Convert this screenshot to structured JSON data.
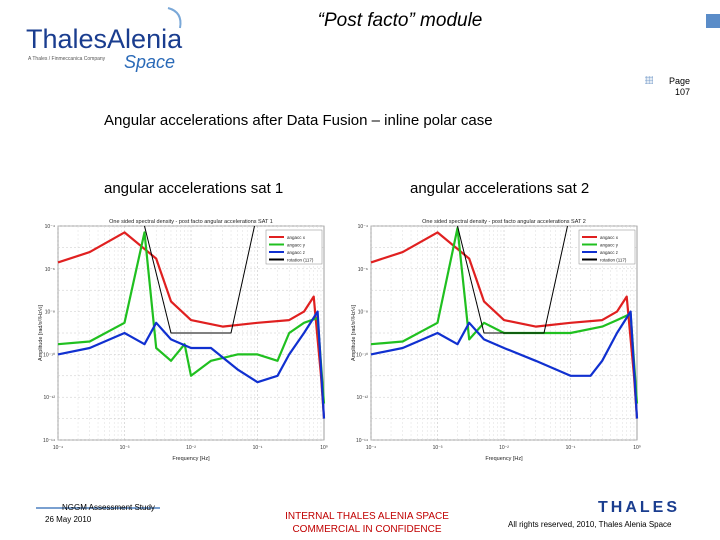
{
  "header": {
    "logo_main": "ThalesAlenia",
    "logo_tagline": "A Thales / Finmeccanica Company",
    "logo_space": "Space",
    "title": "“Post facto” module"
  },
  "page": {
    "label": "Page",
    "number": "107"
  },
  "slide": {
    "subtitle": "Angular accelerations after Data Fusion – inline polar case",
    "caption_sat1": "angular accelerations sat 1",
    "caption_sat2": "angular accelerations sat 2"
  },
  "chart_data": [
    {
      "type": "line",
      "title": "One sided spectral density - post facto angular accelerations SAT 1",
      "xlabel": "Frequency [Hz]",
      "ylabel": "Amplitude [rad/s²/Hz½]",
      "xscale": "log",
      "yscale": "log",
      "xlim": [
        0.0001,
        1
      ],
      "ylim": [
        1e-14,
        0.0001
      ],
      "x_tick_labels": [
        "10⁻⁴",
        "10⁻³",
        "10⁻²",
        "10⁻¹",
        "10⁰"
      ],
      "y_tick_labels": [
        "10⁻⁴",
        "10⁻⁶",
        "10⁻⁸",
        "10⁻¹⁰",
        "10⁻¹²",
        "10⁻¹⁴"
      ],
      "legend": [
        "angacc x",
        "angacc y",
        "angacc z",
        "rotation (117)"
      ],
      "legend_position": "top-right",
      "grid": true,
      "series": [
        {
          "name": "angacc x",
          "color": "#e02020",
          "x": [
            0.0001,
            0.0003,
            0.001,
            0.003,
            0.005,
            0.01,
            0.03,
            0.1,
            0.3,
            0.5,
            0.7,
            0.9,
            1
          ],
          "y": [
            2e-06,
            6e-06,
            5e-05,
            3e-06,
            3e-08,
            4e-09,
            2e-09,
            3e-09,
            4e-09,
            1e-08,
            5e-08,
            1e-11,
            1e-13
          ]
        },
        {
          "name": "angacc y",
          "color": "#20c020",
          "x": [
            0.0001,
            0.0003,
            0.001,
            0.002,
            0.003,
            0.005,
            0.008,
            0.01,
            0.02,
            0.05,
            0.1,
            0.2,
            0.3,
            0.5,
            0.8,
            1
          ],
          "y": [
            3e-10,
            4e-10,
            3e-09,
            5e-05,
            2e-10,
            5e-11,
            3e-10,
            1e-11,
            5e-11,
            1e-10,
            1e-10,
            5e-11,
            1e-09,
            3e-09,
            5e-09,
            5e-13
          ]
        },
        {
          "name": "angacc z",
          "color": "#1030d0",
          "x": [
            0.0001,
            0.0003,
            0.001,
            0.002,
            0.003,
            0.005,
            0.01,
            0.02,
            0.05,
            0.1,
            0.2,
            0.3,
            0.5,
            0.8,
            1
          ],
          "y": [
            1e-10,
            2e-10,
            1e-09,
            3e-10,
            3e-09,
            5e-10,
            2e-10,
            2e-10,
            2e-11,
            5e-12,
            1e-11,
            1e-10,
            1e-09,
            1e-08,
            1e-13
          ]
        },
        {
          "name": "rotation (117)",
          "color": "#000000",
          "x": [
            0.002,
            0.005,
            0.04,
            0.09
          ],
          "y": [
            0.0001,
            1e-09,
            1e-09,
            0.0001
          ]
        }
      ]
    },
    {
      "type": "line",
      "title": "One sided spectral density - post facto angular accelerations SAT 2",
      "xlabel": "Frequency [Hz]",
      "ylabel": "Amplitude [rad/s²/Hz½]",
      "xscale": "log",
      "yscale": "log",
      "xlim": [
        0.0001,
        1
      ],
      "ylim": [
        1e-14,
        0.0001
      ],
      "x_tick_labels": [
        "10⁻⁴",
        "10⁻³",
        "10⁻²",
        "10⁻¹",
        "10⁰"
      ],
      "y_tick_labels": [
        "10⁻⁴",
        "10⁻⁶",
        "10⁻⁸",
        "10⁻¹⁰",
        "10⁻¹²",
        "10⁻¹⁴"
      ],
      "legend": [
        "angacc x",
        "angacc y",
        "angacc z",
        "rotation (117)"
      ],
      "legend_position": "top-right",
      "grid": true,
      "series": [
        {
          "name": "angacc x",
          "color": "#e02020",
          "x": [
            0.0001,
            0.0003,
            0.001,
            0.003,
            0.005,
            0.01,
            0.03,
            0.1,
            0.3,
            0.5,
            0.7,
            0.9,
            1
          ],
          "y": [
            2e-06,
            6e-06,
            5e-05,
            3e-06,
            3e-08,
            4e-09,
            2e-09,
            3e-09,
            4e-09,
            1e-08,
            5e-08,
            1e-11,
            1e-13
          ]
        },
        {
          "name": "angacc y",
          "color": "#20c020",
          "x": [
            0.0001,
            0.0003,
            0.001,
            0.002,
            0.003,
            0.005,
            0.01,
            0.03,
            0.1,
            0.3,
            0.5,
            0.8,
            1
          ],
          "y": [
            3e-10,
            4e-10,
            3e-09,
            8e-05,
            5e-10,
            3e-09,
            1e-09,
            1e-09,
            1e-09,
            2e-09,
            4e-09,
            8e-09,
            5e-13
          ]
        },
        {
          "name": "angacc z",
          "color": "#1030d0",
          "x": [
            0.0001,
            0.0003,
            0.001,
            0.002,
            0.003,
            0.005,
            0.01,
            0.03,
            0.1,
            0.2,
            0.3,
            0.5,
            0.8,
            1
          ],
          "y": [
            1e-10,
            2e-10,
            1e-09,
            3e-10,
            3e-09,
            5e-10,
            2e-10,
            5e-11,
            1e-11,
            1e-11,
            5e-11,
            1e-09,
            1e-08,
            1e-13
          ]
        },
        {
          "name": "rotation (117)",
          "color": "#000000",
          "x": [
            0.002,
            0.005,
            0.04,
            0.09
          ],
          "y": [
            0.0001,
            1e-09,
            1e-09,
            0.0001
          ]
        }
      ]
    }
  ],
  "footer": {
    "study": "NGGM Assessment Study",
    "date": "26 May 2010",
    "confidential_line1": "INTERNAL THALES ALENIA SPACE",
    "confidential_line2": "COMMERCIAL IN CONFIDENCE",
    "thales_logo": "THALES",
    "rights": "All rights reserved, 2010, Thales Alenia Space"
  },
  "colors": {
    "logo_blue": "#1a3d8f",
    "accent_blue": "#5a8cc8",
    "confidential_red": "#c00000"
  }
}
